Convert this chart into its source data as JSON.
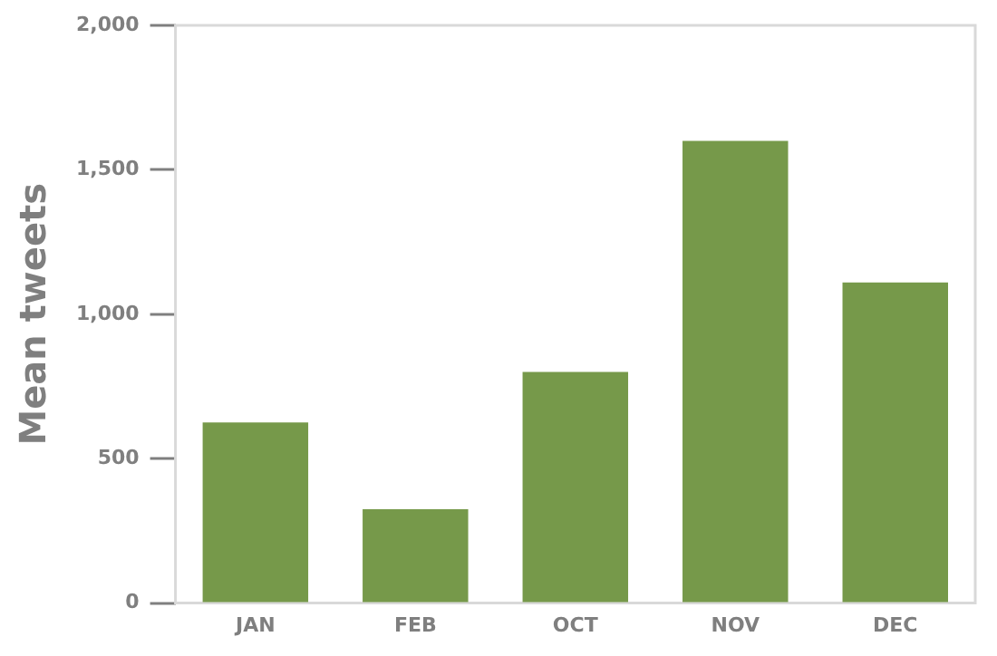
{
  "chart_data": {
    "type": "bar",
    "ylabel": "Mean tweets",
    "categories": [
      "JAN",
      "FEB",
      "OCT",
      "NOV",
      "DEC"
    ],
    "values": [
      625,
      325,
      800,
      1600,
      1110
    ],
    "color": "#76994a",
    "ylim": [
      0,
      2000
    ],
    "yticks": [
      0,
      500,
      {
        "value": 1000,
        "label": "1,000"
      },
      {
        "value": 1500,
        "label": "1,500"
      },
      {
        "value": 2000,
        "label": "2,000"
      }
    ],
    "grid": false,
    "legend": false
  }
}
